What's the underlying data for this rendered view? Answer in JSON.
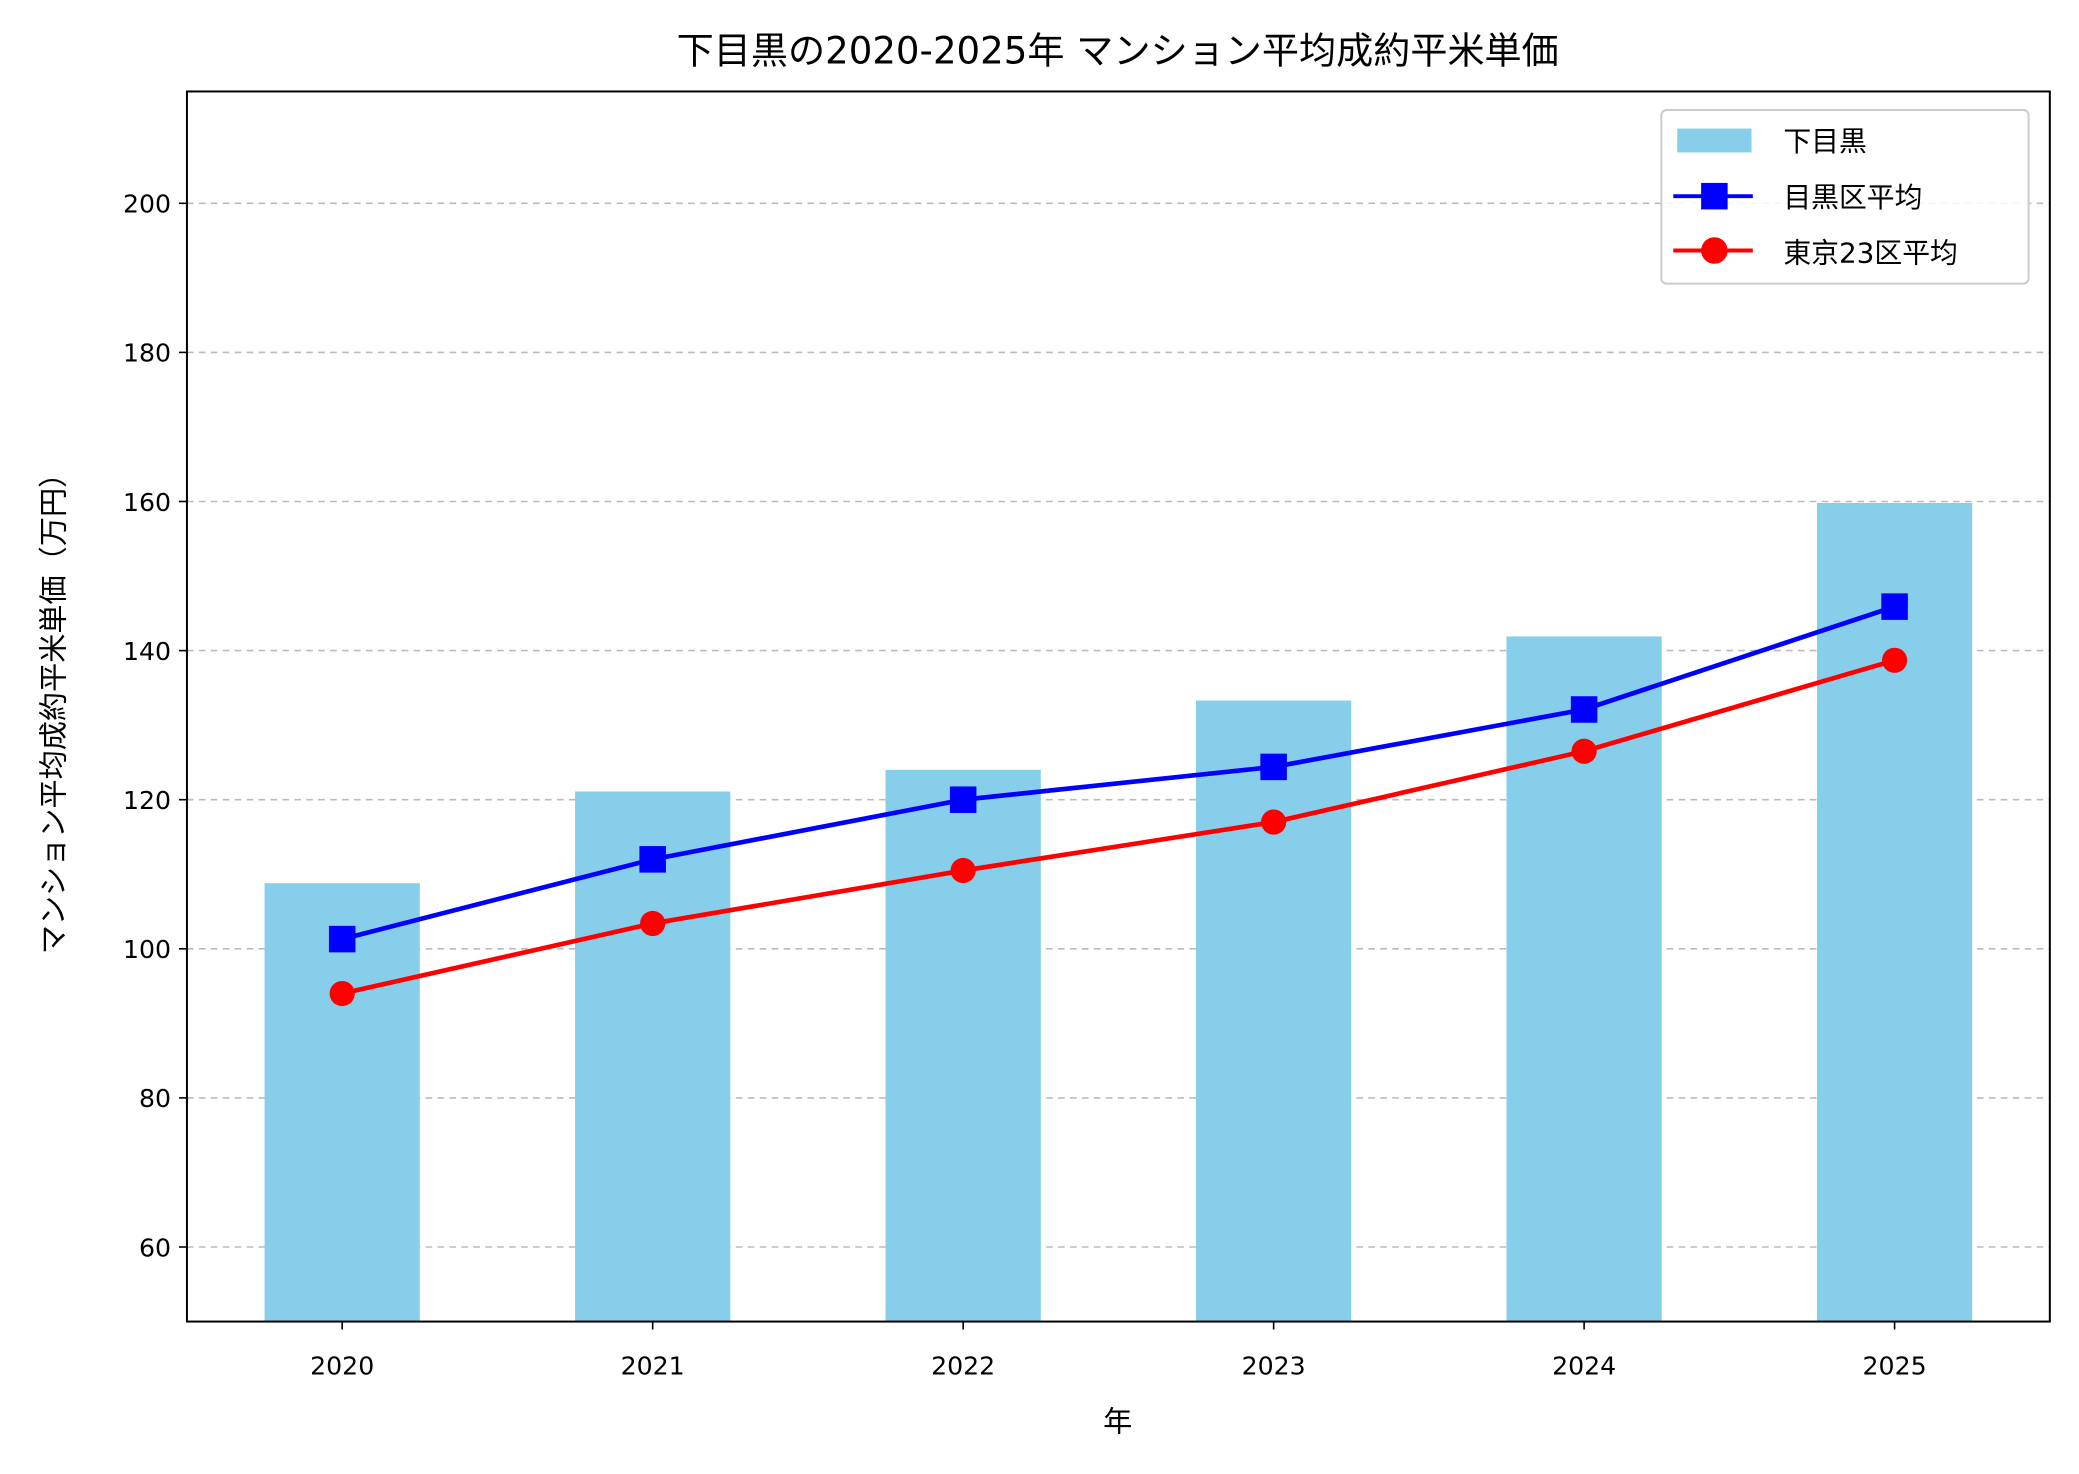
{
  "chart_data": {
    "type": "bar+line",
    "title": "下目黒の2020-2025年 マンション平均成約平米単価",
    "xlabel": "年",
    "ylabel": "マンション平均成約平米単価（万円）",
    "categories": [
      "2020",
      "2021",
      "2022",
      "2023",
      "2024",
      "2025"
    ],
    "ylim": [
      50,
      215
    ],
    "yticks": [
      60,
      80,
      100,
      120,
      140,
      160,
      180,
      200
    ],
    "grid": "y-dashed",
    "legend_position": "top-right",
    "series": [
      {
        "name": "下目黒",
        "type": "bar",
        "color": "#87CEEB",
        "values": [
          108.8,
          121.1,
          124.0,
          133.3,
          141.9,
          159.8
        ]
      },
      {
        "name": "目黒区平均",
        "type": "line",
        "marker": "square",
        "color": "#0000FF",
        "values": [
          101.3,
          112.0,
          120.0,
          124.4,
          132.1,
          145.9
        ]
      },
      {
        "name": "東京23区平均",
        "type": "line",
        "marker": "circle",
        "color": "#FF0000",
        "values": [
          94.0,
          103.4,
          110.5,
          117.0,
          126.5,
          138.7
        ]
      }
    ]
  }
}
